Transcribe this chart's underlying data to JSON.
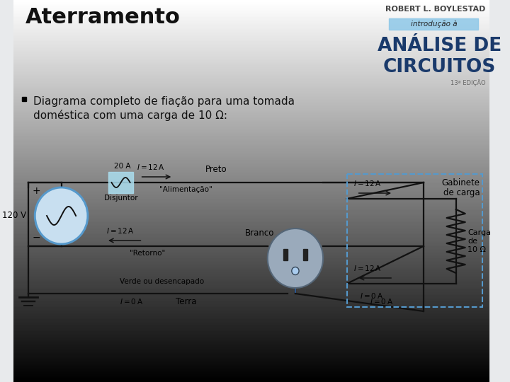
{
  "title": "Aterramento",
  "author": "ROBERT L. BOYLESTAD",
  "intro_text": "introdução à",
  "book_title_line1": "ANÁLISE DE",
  "book_title_line2": "CIRCUITOS",
  "edition": "13ª EDIÇÃO",
  "bullet_text_line1": "Diagrama completo de fiação para uma tomada",
  "bullet_text_line2": "doméstica com uma carga de 10 Ω:",
  "bg_top": "#e8eaec",
  "bg_bot": "#c8ccd2",
  "title_color": "#111111",
  "author_color": "#444444",
  "book_title_color": "#1a3a6b",
  "intro_bg": "#8ec8e8",
  "lc": "#111111",
  "dashed_box_color": "#5599cc",
  "outlet_fill": "#9aaabb",
  "source_stroke": "#5599cc",
  "source_fill": "#c8dff0",
  "disjuntor_fill": "#aaddee",
  "ground_wire_color": "#3366aa",
  "lw": 1.6,
  "title_fs": 22,
  "author_fs": 8,
  "intro_fs": 7.5,
  "book_fs": 19,
  "edition_fs": 6,
  "bullet_fs": 11,
  "circuit_label_fs": 7.5,
  "circuit_tag_fs": 8.5
}
